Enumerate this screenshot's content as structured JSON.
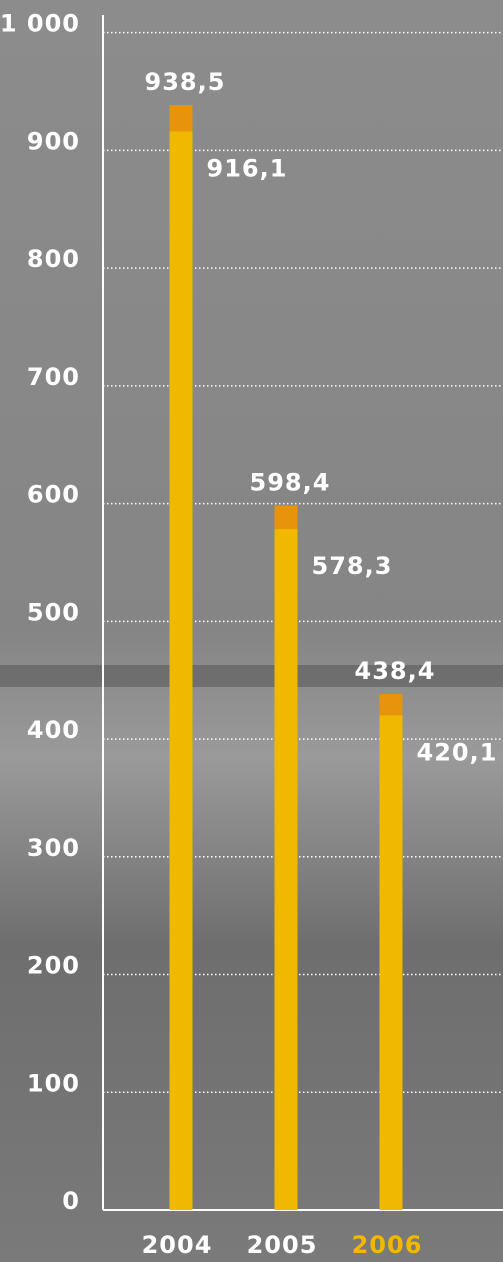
{
  "chart_data": {
    "type": "bar",
    "overlap": true,
    "categories": [
      "2004",
      "2005",
      "2006"
    ],
    "category_label_colors": [
      "#ffffff",
      "#ffffff",
      "#f2b800"
    ],
    "series": [
      {
        "color": "#e8930c",
        "label_position": "top",
        "values": [
          938.5,
          598.4,
          438.4
        ],
        "value_labels": [
          "938,5",
          "598,4",
          "438,4"
        ]
      },
      {
        "color": "#f0b900",
        "label_position": "right",
        "values": [
          916.1,
          578.3,
          420.1
        ],
        "value_labels": [
          "916,1",
          "578,3",
          "420,1"
        ]
      }
    ],
    "ylim": [
      0,
      1015
    ],
    "yticks": [
      0,
      100,
      200,
      300,
      400,
      500,
      600,
      700,
      800,
      900,
      {
        "value": 1000,
        "label": "1 000"
      }
    ],
    "grid": true
  }
}
